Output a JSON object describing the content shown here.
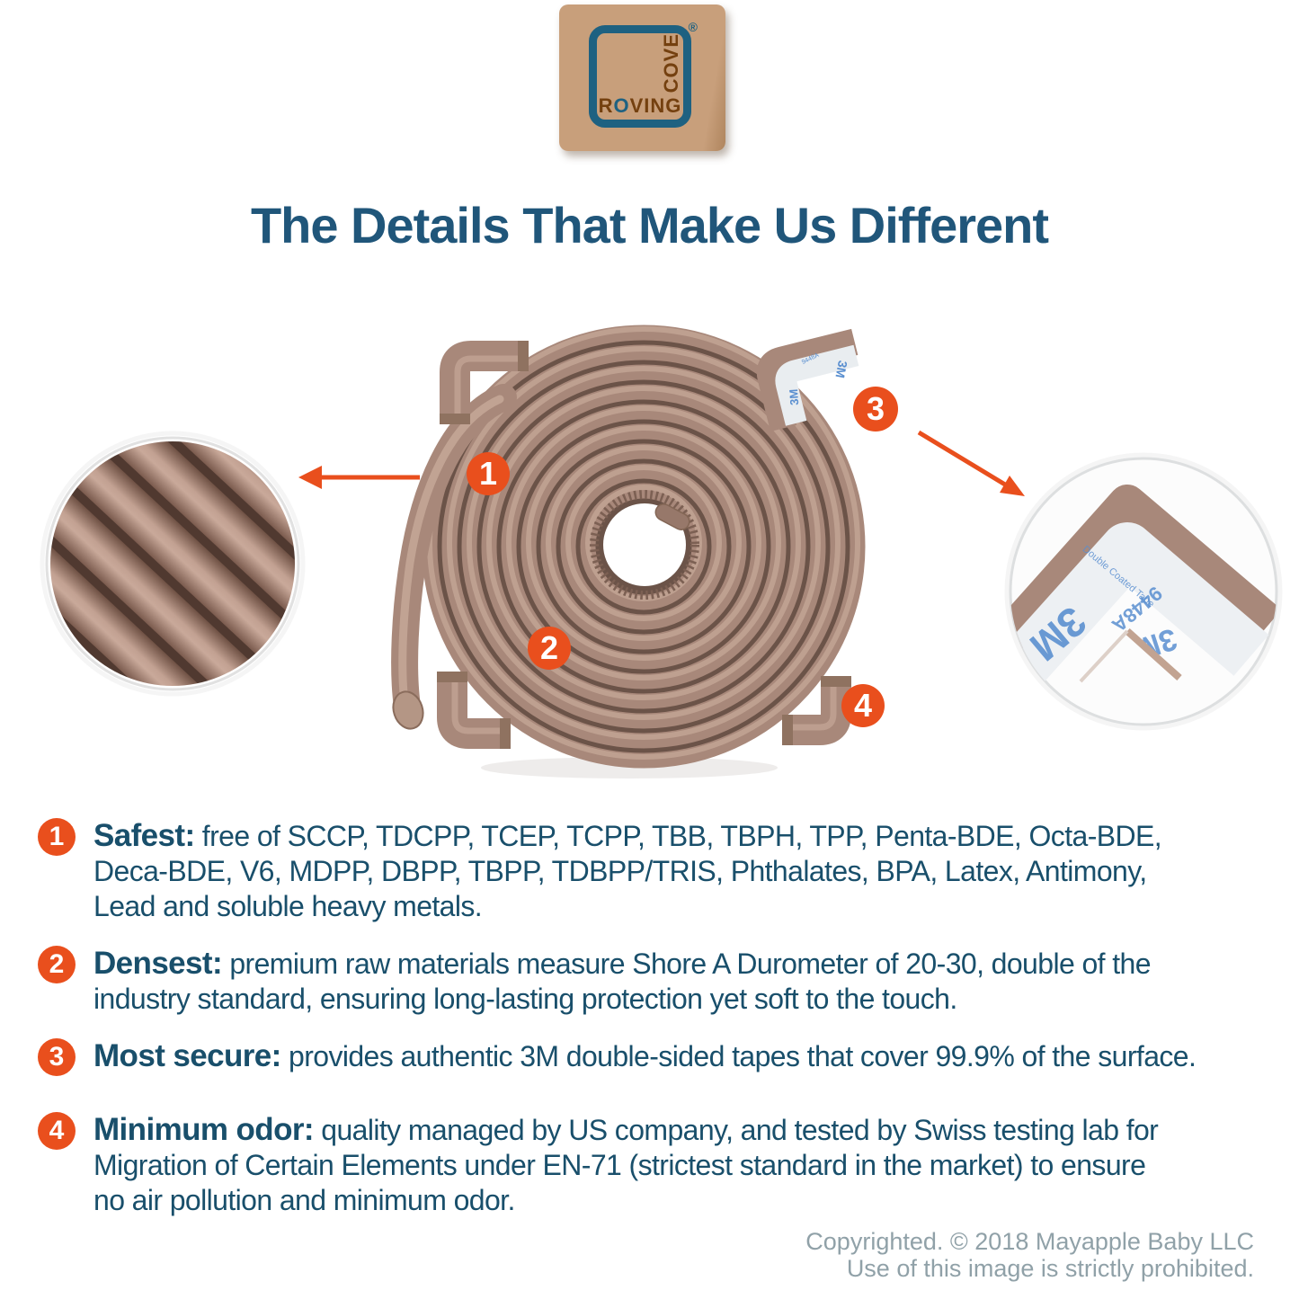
{
  "theme": {
    "accent_orange": "#e94f1d",
    "text_teal": "#194f6b",
    "title_teal": "#20567a",
    "logo_tan": "#c89f7b",
    "logo_teal": "#1e6181",
    "logo_brown": "#74400f",
    "foam": "#a8887a",
    "foam_dark": "#6b5348",
    "foam_light": "#c6a898",
    "tape_blue": "#5a8fd0",
    "copyright_gray": "#90a1a8"
  },
  "logo": {
    "roving_r": "R",
    "roving_o": "O",
    "roving_ving": "VING",
    "word_side": "COVE",
    "registered": "®"
  },
  "title": "The Details That Make Us Different",
  "diagram": {
    "badges": [
      "1",
      "2",
      "3",
      "4"
    ],
    "tape": {
      "brand": "3M",
      "code": "9448A",
      "desc": "Double Coated Tape"
    }
  },
  "features": [
    {
      "num": "1",
      "label": "Safest:",
      "lines": [
        "free of SCCP, TDCPP, TCEP, TCPP, TBB, TBPH, TPP, Penta-BDE, Octa-BDE,",
        "Deca-BDE, V6, MDPP, DBPP, TBPP, TDBPP/TRIS, Phthalates, BPA, Latex, Antimony,",
        "Lead and soluble heavy metals."
      ]
    },
    {
      "num": "2",
      "label": "Densest:",
      "lines": [
        "premium raw materials measure Shore A Durometer of 20-30, double of the",
        "industry standard, ensuring long-lasting protection yet soft to the touch."
      ]
    },
    {
      "num": "3",
      "label": "Most secure:",
      "lines": [
        "provides authentic 3M double-sided tapes that cover 99.9% of the surface."
      ]
    },
    {
      "num": "4",
      "label": "Minimum odor:",
      "lines": [
        "quality managed by US company, and tested by Swiss testing lab for",
        "Migration of Certain Elements under EN-71 (strictest standard in the market) to ensure",
        "no air pollution and minimum odor."
      ]
    }
  ],
  "footer": {
    "line1": "Copyrighted. © 2018 Mayapple Baby LLC",
    "line2": "Use of this image is strictly prohibited."
  }
}
